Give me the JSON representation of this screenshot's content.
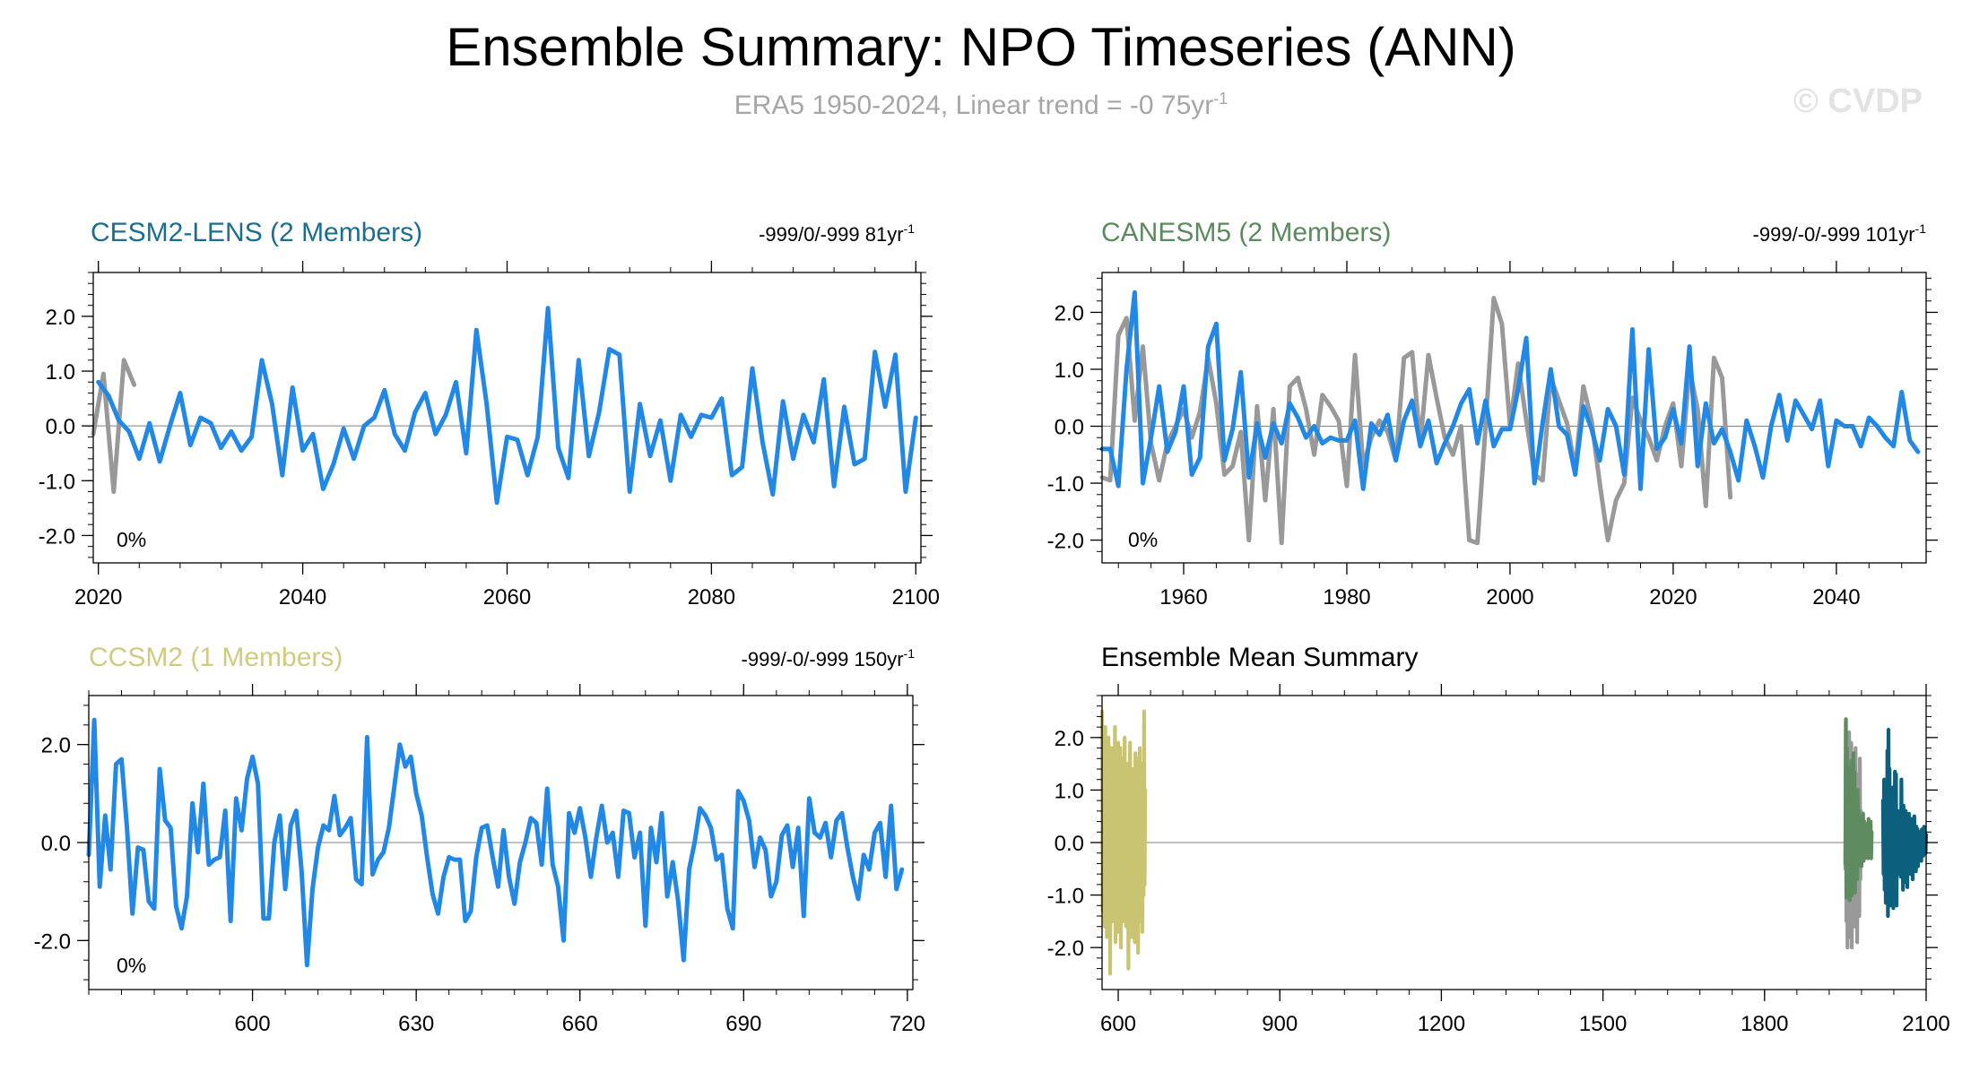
{
  "page": {
    "title": "Ensemble Summary: NPO Timeseries (ANN)",
    "subtitle_main": "ERA5 1950-2024, Linear trend = -0 75yr",
    "subtitle_sup": "-1",
    "watermark": "© CVDP"
  },
  "chart_data": [
    {
      "type": "line",
      "title": "CESM2-LENS (2 Members)",
      "title_color": "#1a6e8f",
      "trend_text": "-999/0/-999 81yr",
      "trend_sup": "-1",
      "percent_label": "0%",
      "xlim": [
        2019.5,
        2100.5
      ],
      "ylim": [
        -2.5,
        2.8
      ],
      "xticks": [
        2020,
        2040,
        2060,
        2080,
        2100
      ],
      "xtick_labels": [
        "2020",
        "2040",
        "2060",
        "2080",
        "2100"
      ],
      "yticks": [
        -2,
        -1,
        0,
        1,
        2
      ],
      "ytick_labels": [
        "-2.0",
        "-1.0",
        "0.0",
        "1.0",
        "2.0"
      ],
      "series": [
        {
          "role": "observations",
          "color": "#999999",
          "x_start": 2019.5,
          "x_step": 1,
          "values": [
            -0.15,
            0.95,
            -1.2,
            1.2,
            0.75
          ]
        },
        {
          "role": "ensemble",
          "color": "#2288e6",
          "x_start": 2020,
          "x_step": 1,
          "values": [
            0.8,
            0.55,
            0.1,
            -0.1,
            -0.6,
            0.05,
            -0.65,
            0.0,
            0.6,
            -0.35,
            0.15,
            0.05,
            -0.4,
            -0.1,
            -0.45,
            -0.2,
            1.2,
            0.4,
            -0.9,
            0.7,
            -0.45,
            -0.15,
            -1.15,
            -0.7,
            -0.05,
            -0.6,
            0.0,
            0.15,
            0.65,
            -0.15,
            -0.45,
            0.25,
            0.6,
            -0.15,
            0.2,
            0.8,
            -0.5,
            1.75,
            0.4,
            -1.4,
            -0.2,
            -0.25,
            -0.9,
            -0.2,
            2.15,
            -0.4,
            -0.95,
            1.2,
            -0.55,
            0.25,
            1.4,
            1.3,
            -1.2,
            0.4,
            -0.55,
            0.1,
            -1.0,
            0.2,
            -0.2,
            0.2,
            0.15,
            0.5,
            -0.9,
            -0.75,
            1.05,
            -0.3,
            -1.25,
            0.45,
            -0.6,
            0.2,
            -0.3,
            0.85,
            -1.1,
            0.35,
            -0.7,
            -0.6,
            1.35,
            0.35,
            1.3,
            -1.2,
            0.15
          ]
        }
      ]
    },
    {
      "type": "line",
      "title": "CANESM5 (2 Members)",
      "title_color": "#5b8a5f",
      "trend_text": "-999/-0/-999 101yr",
      "trend_sup": "-1",
      "percent_label": "0%",
      "xlim": [
        1950,
        2051
      ],
      "ylim": [
        -2.4,
        2.7
      ],
      "xticks": [
        1960,
        1980,
        2000,
        2020,
        2040
      ],
      "xtick_labels": [
        "1960",
        "1980",
        "2000",
        "2020",
        "2040"
      ],
      "yticks": [
        -2,
        -1,
        0,
        1,
        2
      ],
      "ytick_labels": [
        "-2.0",
        "-1.0",
        "0.0",
        "1.0",
        "2.0"
      ],
      "series": [
        {
          "role": "observations",
          "color": "#999999",
          "x_start": 1950,
          "x_step": 1,
          "values": [
            -0.9,
            -0.95,
            1.6,
            1.9,
            0.1,
            1.4,
            -0.3,
            -0.95,
            -0.3,
            0.0,
            0.3,
            -0.2,
            0.25,
            1.2,
            0.4,
            -0.85,
            -0.7,
            -0.1,
            -2.0,
            0.35,
            -1.3,
            0.3,
            -2.05,
            0.7,
            0.85,
            0.3,
            -0.5,
            0.55,
            0.35,
            0.1,
            -1.05,
            1.25,
            -0.7,
            -0.2,
            0.1,
            -0.1,
            -0.6,
            1.2,
            1.3,
            -0.3,
            1.25,
            0.5,
            -0.2,
            -0.5,
            0.0,
            -2.0,
            -2.05,
            0.0,
            2.25,
            1.8,
            0.0,
            1.1,
            0.1,
            -0.85,
            -0.95,
            0.85,
            0.45,
            0.05,
            -0.75,
            0.7,
            0.1,
            -1.0,
            -2.0,
            -1.3,
            -1.0,
            0.5,
            0.1,
            -0.2,
            -0.6,
            0.0,
            0.4,
            -0.7,
            1.0,
            0.3,
            -1.4,
            1.2,
            0.85,
            -1.25
          ]
        },
        {
          "role": "ensemble",
          "color": "#2288e6",
          "x_start": 1950,
          "x_step": 1,
          "values": [
            -0.4,
            -0.4,
            -1.05,
            1.0,
            2.35,
            -1.0,
            -0.2,
            0.7,
            -0.45,
            -0.1,
            0.7,
            -0.85,
            -0.55,
            1.4,
            1.8,
            -0.6,
            -0.05,
            0.95,
            -0.9,
            0.05,
            -0.55,
            0.05,
            -0.3,
            0.4,
            0.15,
            -0.2,
            0.0,
            -0.3,
            -0.2,
            -0.25,
            -0.25,
            0.1,
            -1.1,
            0.05,
            -0.15,
            0.2,
            -0.6,
            0.1,
            0.45,
            -0.35,
            0.1,
            -0.65,
            -0.3,
            0.0,
            0.4,
            0.65,
            -0.3,
            0.45,
            -0.35,
            -0.05,
            -0.05,
            0.65,
            1.55,
            -1.0,
            0.05,
            1.0,
            0.0,
            -0.15,
            -0.85,
            0.35,
            -0.05,
            -0.6,
            0.3,
            0.0,
            -0.85,
            1.7,
            -1.1,
            1.35,
            -0.4,
            -0.2,
            0.3,
            -0.3,
            1.4,
            -0.7,
            0.4,
            -0.3,
            -0.05,
            -0.45,
            -0.95,
            0.1,
            -0.35,
            -0.9,
            0.0,
            0.55,
            -0.25,
            0.45,
            0.2,
            -0.05,
            0.45,
            -0.7,
            0.1,
            0.0,
            0.0,
            -0.35,
            0.15,
            0.0,
            -0.2,
            -0.35,
            0.6,
            -0.25,
            -0.45
          ]
        }
      ]
    },
    {
      "type": "line",
      "title": "CCSM2 (1 Members)",
      "title_color": "#cfcb80",
      "trend_text": "-999/-0/-999 150yr",
      "trend_sup": "-1",
      "percent_label": "0%",
      "xlim": [
        570,
        721
      ],
      "ylim": [
        -3.0,
        3.0
      ],
      "xticks": [
        600,
        630,
        660,
        690,
        720
      ],
      "xtick_labels": [
        "600",
        "630",
        "660",
        "690",
        "720"
      ],
      "yticks": [
        -2,
        0,
        2
      ],
      "ytick_labels": [
        "-2.0",
        "0.0",
        "2.0"
      ],
      "series": [
        {
          "role": "ensemble",
          "color": "#2288e6",
          "x_start": 570,
          "x_step": 1,
          "values": [
            -0.25,
            2.5,
            -0.9,
            0.55,
            -0.55,
            1.6,
            1.7,
            0.3,
            -1.45,
            -0.1,
            -0.15,
            -1.2,
            -1.35,
            1.5,
            0.45,
            0.3,
            -1.3,
            -1.75,
            -1.1,
            0.8,
            -0.2,
            1.2,
            -0.45,
            -0.35,
            -0.3,
            0.65,
            -1.6,
            0.9,
            0.25,
            1.3,
            1.75,
            1.2,
            -1.55,
            -1.55,
            0.0,
            0.55,
            -0.95,
            0.35,
            0.65,
            -0.6,
            -2.5,
            -0.95,
            -0.1,
            0.35,
            0.25,
            0.95,
            0.15,
            0.3,
            0.5,
            -0.75,
            -0.85,
            2.15,
            -0.65,
            -0.35,
            -0.2,
            0.3,
            1.15,
            2.0,
            1.55,
            1.75,
            1.0,
            0.55,
            -0.3,
            -1.05,
            -1.45,
            -0.7,
            -0.3,
            -0.35,
            -0.35,
            -1.6,
            -1.4,
            -0.3,
            0.3,
            0.35,
            -0.3,
            -0.9,
            0.25,
            -0.7,
            -1.25,
            -0.4,
            0.0,
            0.5,
            0.4,
            -0.45,
            1.1,
            -0.45,
            -0.9,
            -2.0,
            0.6,
            0.2,
            0.7,
            0.1,
            -0.7,
            0.1,
            0.75,
            0.0,
            0.2,
            -0.7,
            0.65,
            0.6,
            -0.3,
            0.2,
            -1.7,
            0.3,
            -0.4,
            0.6,
            -1.1,
            -0.4,
            -1.2,
            -2.4,
            -0.55,
            0.0,
            0.7,
            0.55,
            0.3,
            -0.35,
            -0.25,
            -1.35,
            -1.75,
            1.05,
            0.85,
            0.45,
            -0.5,
            0.1,
            -0.15,
            -1.1,
            -0.8,
            0.15,
            0.35,
            -0.5,
            0.3,
            -1.5,
            0.9,
            0.2,
            0.1,
            0.4,
            -0.3,
            0.45,
            0.6,
            -0.1,
            -0.7,
            -1.15,
            -0.25,
            -0.55,
            0.2,
            0.4,
            -0.7,
            0.75,
            -0.95,
            -0.55
          ]
        }
      ]
    },
    {
      "type": "line",
      "title": "Ensemble Mean Summary",
      "title_color": "#000000",
      "xlim": [
        570,
        2100
      ],
      "ylim": [
        -2.8,
        2.8
      ],
      "xticks": [
        600,
        900,
        1200,
        1500,
        1800,
        2100
      ],
      "xtick_labels": [
        "600",
        "900",
        "1200",
        "1500",
        "1800",
        "2100"
      ],
      "yticks": [
        -2,
        -1,
        0,
        1,
        2
      ],
      "ytick_labels": [
        "-2.0",
        "-1.0",
        "0.0",
        "1.0",
        "2.0"
      ],
      "series": [
        {
          "role": "CCSM2",
          "color": "#c9c472",
          "x_start": 570,
          "x_step": 1,
          "values": [
            2.5,
            -1.3,
            1.9,
            -0.8,
            0.9,
            -1.6,
            2.2,
            -1.0,
            1.5,
            -1.8,
            0.6,
            -1.4,
            2.0,
            -0.5,
            1.2,
            -2.5,
            0.9,
            -1.2,
            1.8,
            -1.5,
            0.3,
            -0.9,
            1.7,
            -1.1,
            2.2,
            -1.9,
            0.8,
            -0.6,
            1.4,
            -1.7,
            1.9,
            -0.4,
            0.6,
            -1.3,
            1.8,
            -2.0,
            0.5,
            -0.9,
            1.6,
            -1.5,
            1.2,
            -0.7,
            2.0,
            -1.4,
            0.4,
            -1.6,
            1.3,
            -0.8,
            1.5,
            -2.4,
            0.7,
            -1.1,
            1.9,
            -0.3,
            0.9,
            -1.8,
            1.4,
            -0.6,
            1.1,
            -1.3,
            0.6,
            -1.9,
            1.7,
            -0.5,
            1.0,
            -1.2,
            1.6,
            -2.1,
            0.3,
            -0.9,
            1.8,
            -1.5,
            0.8,
            -0.4,
            1.5,
            -1.7,
            0.5,
            -1.0,
            2.5,
            -0.8,
            1.0
          ]
        },
        {
          "role": "observations",
          "color": "#999999",
          "x_start": 1950,
          "x_step": 1,
          "values": [
            -0.5,
            2.3,
            -1.5,
            1.6,
            -2.0,
            1.2,
            -0.9,
            2.1,
            -1.8,
            0.7,
            -1.2,
            1.9,
            -2.0,
            0.5,
            -0.8,
            1.5,
            -1.6,
            1.1,
            -0.6,
            1.8,
            -1.3,
            0.4,
            -1.9,
            1.3,
            -0.3,
            0.9,
            -1.4,
            1.6,
            -0.7,
            0.6
          ]
        },
        {
          "role": "CANESM5",
          "color": "#5e8c60",
          "x_start": 1950,
          "x_step": 1,
          "values": [
            -0.4,
            2.35,
            -1.05,
            1.8,
            -0.9,
            0.95,
            -0.55,
            1.4,
            -1.1,
            0.7,
            -0.85,
            1.55,
            -1.0,
            0.45,
            -0.3,
            1.7,
            -0.6,
            1.35,
            -0.95,
            0.65,
            -0.4,
            0.55,
            -0.7,
            1.0,
            -0.45,
            0.6,
            -0.35,
            0.45,
            -0.25,
            0.3,
            -0.45,
            0.5,
            -0.2,
            0.55,
            -0.35,
            0.4,
            -0.3,
            0.3,
            -0.2,
            0.35,
            -0.25,
            0.2,
            -0.3,
            0.45,
            -0.15,
            0.25,
            -0.2,
            0.4,
            -0.3,
            0.2
          ]
        },
        {
          "role": "CESM2-LENS",
          "color": "#0d5f7e",
          "x_start": 2020,
          "x_step": 1,
          "values": [
            0.8,
            -0.6,
            1.2,
            -0.9,
            0.7,
            -1.15,
            0.65,
            -0.45,
            1.75,
            -1.4,
            2.15,
            -0.95,
            1.4,
            -1.2,
            0.4,
            -1.0,
            0.5,
            -0.9,
            1.05,
            -1.25,
            0.85,
            -1.1,
            1.35,
            -0.7,
            1.3,
            -1.2,
            0.2,
            -0.6,
            0.6,
            -0.5,
            0.45,
            -0.3,
            0.35,
            -0.65,
            1.2,
            -0.55,
            0.25,
            -0.9,
            0.7,
            -0.4,
            0.15,
            -0.75,
            0.6,
            -0.2,
            0.4,
            -0.85,
            0.3,
            -0.5,
            0.55,
            -0.3,
            0.2,
            -0.6,
            0.45,
            -0.15,
            0.35,
            -0.7,
            0.2,
            -0.25,
            0.5,
            -0.4,
            0.1,
            -0.55,
            0.3,
            -0.1,
            0.25,
            -0.45,
            0.15,
            -0.3,
            0.2,
            -0.2,
            0.1,
            -0.35,
            0.25,
            -0.15,
            0.05,
            -0.25,
            0.3,
            -0.1,
            0.2,
            -0.2,
            0.15
          ]
        }
      ]
    }
  ]
}
